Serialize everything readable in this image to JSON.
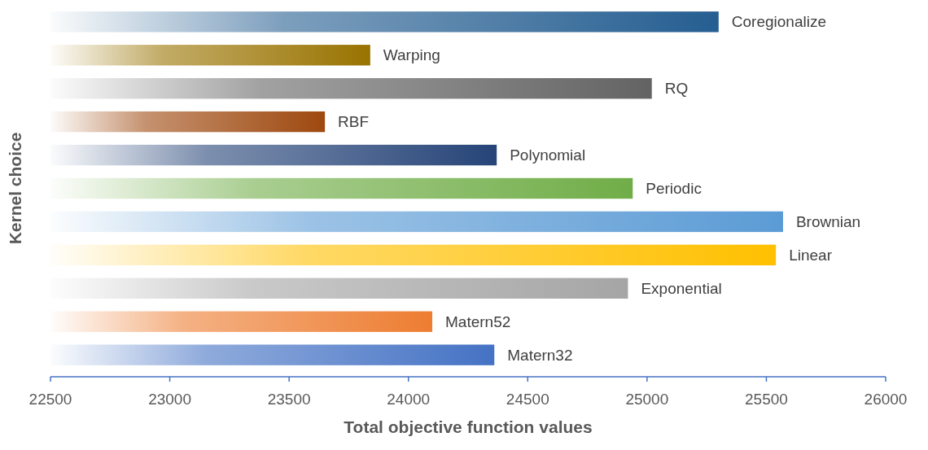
{
  "chart_data": {
    "type": "bar",
    "orientation": "horizontal",
    "xlabel": "Total objective function values",
    "ylabel": "Kernel choice",
    "categories": [
      "Coregionalize",
      "Warping",
      "RQ",
      "RBF",
      "Polynomial",
      "Periodic",
      "Brownian",
      "Linear",
      "Exponential",
      "Matern52",
      "Matern32"
    ],
    "values": [
      25300,
      23840,
      25020,
      23650,
      24370,
      24940,
      25570,
      25540,
      24920,
      24100,
      24360
    ],
    "colors": [
      "#255e91",
      "#997300",
      "#636363",
      "#9e480e",
      "#264478",
      "#70ad47",
      "#5b9bd5",
      "#ffc000",
      "#a5a5a5",
      "#ed7d31",
      "#4472c4"
    ],
    "xlim": [
      22500,
      26000
    ],
    "xticks": [
      22500,
      23000,
      23500,
      24000,
      24500,
      25000,
      25500,
      26000
    ],
    "grid": false
  }
}
